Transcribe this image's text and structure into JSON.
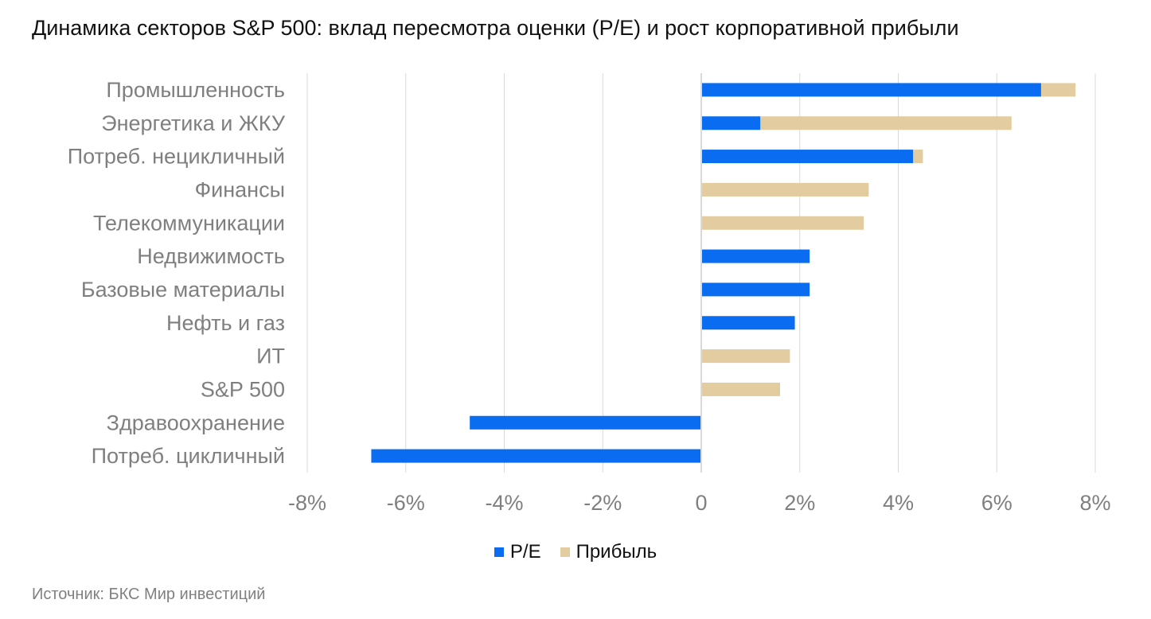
{
  "title": "Динамика секторов S&P 500: вклад пересмотра оценки (P/E) и рост корпоративной прибыли",
  "source": "Источник: БКС Мир инвестиций",
  "colors": {
    "pe": "#0a6cf0",
    "profit": "#e3cc9f",
    "grid": "#d9d9d9",
    "label": "#7f7f7f"
  },
  "chart_data": {
    "type": "bar",
    "orientation": "horizontal",
    "stacked": true,
    "categories": [
      "Промышленность",
      "Энергетика и ЖКУ",
      "Потреб. нецикличный",
      "Финансы",
      "Телекоммуникации",
      "Недвижимость",
      "Базовые материалы",
      "Нефть и газ",
      "ИТ",
      "S&P 500",
      "Здравоохранение",
      "Потреб. цикличный"
    ],
    "series": [
      {
        "name": "P/E",
        "values": [
          6.9,
          1.2,
          4.3,
          0,
          0,
          2.2,
          2.2,
          1.9,
          0,
          0,
          -4.7,
          -6.7
        ]
      },
      {
        "name": "Прибыль",
        "values": [
          0.7,
          5.1,
          0.2,
          3.4,
          3.3,
          0,
          0,
          0,
          1.8,
          1.6,
          0,
          0
        ]
      }
    ],
    "xlim": [
      -8,
      8
    ],
    "x_ticks": [
      -8,
      -6,
      -4,
      -2,
      0,
      2,
      4,
      6,
      8
    ],
    "x_tick_labels": [
      "-8%",
      "-6%",
      "-4%",
      "-2%",
      "0",
      "2%",
      "4%",
      "6%",
      "8%"
    ],
    "grid": true,
    "legend_position": "bottom"
  }
}
